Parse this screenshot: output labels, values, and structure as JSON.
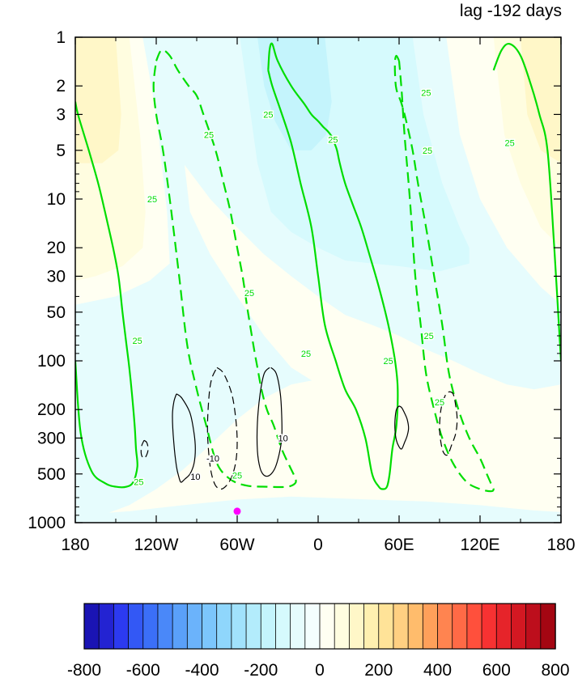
{
  "chart_data": {
    "type": "contour",
    "title": "lag -192 days",
    "x_axis": {
      "range": [
        -180,
        180
      ],
      "tick_values": [
        -180,
        -120,
        -60,
        0,
        60,
        120,
        180
      ],
      "tick_labels": [
        "180",
        "120W",
        "60W",
        "0",
        "60E",
        "120E",
        "180"
      ]
    },
    "y_axis": {
      "scale": "log",
      "reversed": true,
      "range": [
        1,
        1000
      ],
      "tick_values": [
        1,
        2,
        3,
        5,
        10,
        20,
        30,
        50,
        100,
        200,
        300,
        500,
        1000
      ],
      "tick_labels": [
        "1",
        "2",
        "3",
        "5",
        "10",
        "20",
        "30",
        "50",
        "100",
        "200",
        "300",
        "500",
        "1000"
      ]
    },
    "shaded_field_regions": [
      {
        "sign": "positive",
        "level": "0 to 50",
        "region": "upper-left, 180 to 130W, 1 to 20 hPa"
      },
      {
        "sign": "positive",
        "level": "50 to 100",
        "region": "upper-left corner, 180 to 150W, 1 to 5 hPa"
      },
      {
        "sign": "negative",
        "level": "-100 to -50",
        "region": "centered near 20W, 1 to 30 hPa"
      },
      {
        "sign": "negative",
        "level": "-50 to 0",
        "region": "band from 40W to 60E in stratosphere tilting to lower troposphere"
      },
      {
        "sign": "positive",
        "level": "0 to 50",
        "region": "upper-right, 120E to 180, 1 to 30 hPa"
      },
      {
        "sign": "positive",
        "level": "50 to 100",
        "region": "upper-right corner, 130E to 180, 1 to 5 hPa"
      },
      {
        "sign": "negative",
        "level": "-50 to 0",
        "region": "lower-left, 180 to 60W, 50 to 1000 hPa"
      },
      {
        "sign": "positive",
        "level": "0 to 50",
        "region": "lower troposphere, 60W to 180, 100 to 1000 hPa"
      }
    ],
    "contour_lines": [
      {
        "color": "#00dd00",
        "value": 25,
        "style": "solid",
        "lon": [
          -180,
          -178,
          -170,
          -163,
          -158,
          -152,
          -148,
          -145,
          -142,
          -140,
          -138,
          -136,
          -135,
          -134,
          -137,
          -142,
          -150,
          -158,
          -168,
          -176,
          -180
        ],
        "p": [
          2.5,
          3,
          5,
          8,
          12,
          20,
          30,
          50,
          80,
          110,
          160,
          250,
          350,
          450,
          560,
          600,
          600,
          570,
          480,
          280,
          100
        ]
      },
      {
        "color": "#00dd00",
        "value": 25,
        "style": "solid",
        "lon": [
          -37,
          -36,
          -34,
          -30,
          -20,
          -10,
          -5,
          0,
          4,
          7,
          10,
          12,
          14,
          16,
          20,
          26,
          32,
          38,
          45,
          52,
          57,
          59,
          58,
          55,
          53,
          51,
          48,
          45,
          40,
          35,
          28,
          20,
          13,
          5,
          0,
          -5,
          -13,
          -20,
          -28,
          -34,
          -37
        ],
        "p": [
          1.6,
          1.2,
          1.1,
          1.4,
          2.0,
          2.6,
          3.0,
          3.3,
          3.6,
          3.8,
          4.1,
          4.5,
          5,
          6,
          8,
          11,
          15,
          22,
          35,
          60,
          100,
          150,
          250,
          350,
          500,
          600,
          620,
          600,
          500,
          300,
          200,
          150,
          100,
          60,
          30,
          15,
          8,
          4.5,
          2.8,
          2.0,
          1.6
        ]
      },
      {
        "color": "#00dd00",
        "value": 25,
        "style": "solid",
        "lon": [
          130,
          136,
          142,
          150,
          158,
          164,
          170,
          175,
          180
        ],
        "p": [
          1.6,
          1.2,
          1.1,
          1.3,
          2.0,
          3.0,
          5,
          20,
          100
        ]
      },
      {
        "color": "#00dd00",
        "value": 25,
        "style": "dashed",
        "lon": [
          -120,
          -116,
          -110,
          -104,
          -96,
          -90,
          -85,
          -76,
          -70,
          -65,
          -60,
          -56,
          -52,
          -48,
          -45,
          -42,
          -38,
          -33,
          -27,
          -21,
          -17,
          -17,
          -23,
          -38,
          -53,
          -65,
          -75,
          -83,
          -90,
          -97,
          -103,
          -110,
          -115,
          -120,
          -122,
          -120
        ],
        "p": [
          1.4,
          1.2,
          1.3,
          1.6,
          2.0,
          2.3,
          3.0,
          5,
          8,
          12,
          20,
          30,
          50,
          80,
          110,
          150,
          200,
          250,
          350,
          450,
          530,
          570,
          600,
          600,
          590,
          540,
          430,
          250,
          150,
          80,
          30,
          10,
          5,
          3,
          2,
          1.4
        ]
      },
      {
        "color": "#00dd00",
        "value": 25,
        "style": "dashed",
        "lon": [
          60,
          58,
          57,
          57,
          58,
          62,
          66,
          70,
          74,
          80,
          86,
          92,
          97,
          104,
          112,
          120,
          125,
          128,
          130,
          128,
          120,
          110,
          100,
          92,
          86,
          80,
          76,
          72,
          68,
          64,
          62,
          60
        ],
        "p": [
          1.4,
          1.3,
          1.4,
          1.7,
          2.1,
          2.6,
          3.5,
          5,
          8,
          15,
          30,
          60,
          120,
          200,
          300,
          400,
          500,
          570,
          620,
          640,
          620,
          560,
          430,
          300,
          200,
          120,
          60,
          30,
          10,
          4,
          2.2,
          1.4
        ]
      },
      {
        "color": "#000000",
        "value": 10,
        "style": "solid",
        "lon": [
          -105,
          -101,
          -95,
          -92,
          -91,
          -92,
          -95,
          -99,
          -101,
          -102,
          -103,
          -105,
          -107,
          -108,
          -107,
          -105
        ],
        "p": [
          160,
          170,
          210,
          280,
          350,
          430,
          500,
          540,
          560,
          560,
          530,
          450,
          320,
          220,
          180,
          160
        ]
      },
      {
        "color": "#000000",
        "value": 10,
        "style": "solid",
        "lon": [
          -35,
          -31,
          -28,
          -27,
          -27,
          -29,
          -32,
          -36,
          -40,
          -43,
          -45,
          -45,
          -43,
          -40,
          -36
        ],
        "p": [
          110,
          120,
          160,
          220,
          300,
          380,
          460,
          510,
          510,
          460,
          360,
          240,
          160,
          120,
          110
        ]
      },
      {
        "color": "#000000",
        "value": 10,
        "style": "solid",
        "lon": [
          60,
          62,
          64,
          66,
          67,
          66,
          64,
          62,
          60,
          58,
          57,
          57,
          58,
          60
        ],
        "p": [
          190,
          195,
          210,
          230,
          260,
          290,
          320,
          350,
          340,
          310,
          270,
          230,
          200,
          190
        ]
      },
      {
        "color": "#000000",
        "value": -10,
        "style": "dashed",
        "lon": [
          -75,
          -70,
          -64,
          -61,
          -60,
          -61,
          -64,
          -68,
          -72,
          -76,
          -79,
          -81,
          -82,
          -81,
          -79,
          -75
        ],
        "p": [
          110,
          120,
          160,
          230,
          320,
          420,
          520,
          590,
          620,
          590,
          500,
          380,
          260,
          170,
          130,
          110
        ]
      },
      {
        "color": "#000000",
        "value": -10,
        "style": "dashed",
        "lon": [
          -129,
          -127,
          -126,
          -127,
          -129,
          -131,
          -131,
          -129
        ],
        "p": [
          310,
          320,
          350,
          380,
          400,
          380,
          340,
          310
        ]
      },
      {
        "color": "#000000",
        "value": -10,
        "style": "dashed",
        "lon": [
          97,
          100,
          102,
          103,
          102,
          99,
          96,
          93,
          91,
          90,
          91,
          94,
          97
        ],
        "p": [
          155,
          160,
          190,
          230,
          280,
          330,
          380,
          370,
          320,
          260,
          200,
          165,
          155
        ]
      }
    ],
    "contour_labels": [
      {
        "text": "25",
        "lon": -134,
        "p": 75,
        "color": "#00dd00"
      },
      {
        "text": "25",
        "lon": -133,
        "p": 560,
        "color": "#00dd00"
      },
      {
        "text": "25",
        "lon": -123,
        "p": 10,
        "color": "#00dd00"
      },
      {
        "text": "25",
        "lon": -81,
        "p": 4,
        "color": "#00dd00"
      },
      {
        "text": "25",
        "lon": -51,
        "p": 38,
        "color": "#00dd00"
      },
      {
        "text": "25",
        "lon": -60,
        "p": 510,
        "color": "#00dd00"
      },
      {
        "text": "25",
        "lon": -37,
        "p": 3,
        "color": "#00dd00"
      },
      {
        "text": "25",
        "lon": -9,
        "p": 90,
        "color": "#00dd00"
      },
      {
        "text": "25",
        "lon": 11,
        "p": 4.3,
        "color": "#00dd00"
      },
      {
        "text": "25",
        "lon": 52,
        "p": 100,
        "color": "#00dd00"
      },
      {
        "text": "25",
        "lon": 81,
        "p": 5,
        "color": "#00dd00"
      },
      {
        "text": "25",
        "lon": 82,
        "p": 70,
        "color": "#00dd00"
      },
      {
        "text": "25",
        "lon": 90,
        "p": 180,
        "color": "#00dd00"
      },
      {
        "text": "25",
        "lon": 80,
        "p": 2.2,
        "color": "#00dd00"
      },
      {
        "text": "25",
        "lon": 142,
        "p": 4.5,
        "color": "#00dd00"
      },
      {
        "text": "10",
        "lon": -91,
        "p": 520,
        "color": "#000000"
      },
      {
        "text": "10",
        "lon": -26,
        "p": 300,
        "color": "#000000"
      },
      {
        "text": "-10",
        "lon": -78,
        "p": 400,
        "color": "#000000"
      }
    ],
    "marker": {
      "lon": -60,
      "p": 850,
      "color": "#ff00ff"
    },
    "colorbar": {
      "levels": [
        -800,
        -750,
        -700,
        -650,
        -600,
        -550,
        -500,
        -450,
        -400,
        -350,
        -300,
        -250,
        -200,
        -150,
        -100,
        -50,
        0,
        50,
        100,
        150,
        200,
        250,
        300,
        350,
        400,
        450,
        500,
        550,
        600,
        650,
        700,
        750,
        800
      ],
      "tick_labels": [
        "-800",
        "-600",
        "-400",
        "-200",
        "0",
        "200",
        "400",
        "600",
        "800"
      ],
      "colors": [
        "#1a14b4",
        "#2323d2",
        "#2c3af0",
        "#3358f5",
        "#3b6ff8",
        "#4a88f9",
        "#5aa0f9",
        "#6bb3fb",
        "#7cc6fc",
        "#8fd6fc",
        "#a1e2fc",
        "#b3ecfc",
        "#c4f4fc",
        "#d6fafd",
        "#e6fcfd",
        "#f4fefe",
        "#fffff2",
        "#fffde0",
        "#fff7c8",
        "#fff0b0",
        "#ffe398",
        "#ffd082",
        "#ffbc6c",
        "#ffa05a",
        "#ff8450",
        "#ff6a46",
        "#ff503c",
        "#f73232",
        "#e6242a",
        "#d31822",
        "#bd0e1c",
        "#a40612"
      ]
    }
  }
}
